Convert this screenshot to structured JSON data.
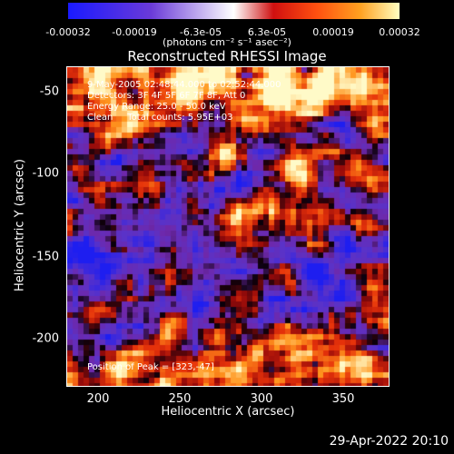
{
  "colorbar": {
    "ticks": [
      "-0.00032",
      "-0.00019",
      "-6.3e-05",
      "6.3e-05",
      "0.00019",
      "0.00032"
    ],
    "unit_label": "(photons cm⁻² s⁻¹ asec⁻²)"
  },
  "title": "Reconstructed RHESSI Image",
  "info": {
    "line1": "9-May-2005 02:48:44.000 to 02:52:44.000",
    "line2": "Detectors: 3F 4F 5F 6F 7F 8F, Att 0",
    "line3": "Energy Range: 25.0 - 50.0 keV",
    "line4": "Clean     Total counts: 5.95E+03",
    "peak": "Position of Peak = [323,-47]"
  },
  "axes": {
    "xlabel": "Heliocentric X (arcsec)",
    "ylabel": "Heliocentric Y (arcsec)",
    "xticks": [
      "200",
      "250",
      "300",
      "350"
    ],
    "yticks": [
      "-50",
      "-100",
      "-150",
      "-200"
    ]
  },
  "footer": "29-Apr-2022 20:10",
  "chart_data": {
    "type": "heatmap",
    "title": "Reconstructed RHESSI Image",
    "xlabel": "Heliocentric X (arcsec)",
    "ylabel": "Heliocentric Y (arcsec)",
    "xlim": [
      184,
      376
    ],
    "ylim": [
      -228,
      -37
    ],
    "colorbar_range": [
      -0.00032,
      0.00032
    ],
    "peak_position": [
      323,
      -47
    ],
    "colormap_stops": [
      "#1a1aff",
      "#6a3ad8",
      "#000000",
      "#d01010",
      "#ff5010",
      "#ffa020",
      "#ffffc0"
    ]
  }
}
